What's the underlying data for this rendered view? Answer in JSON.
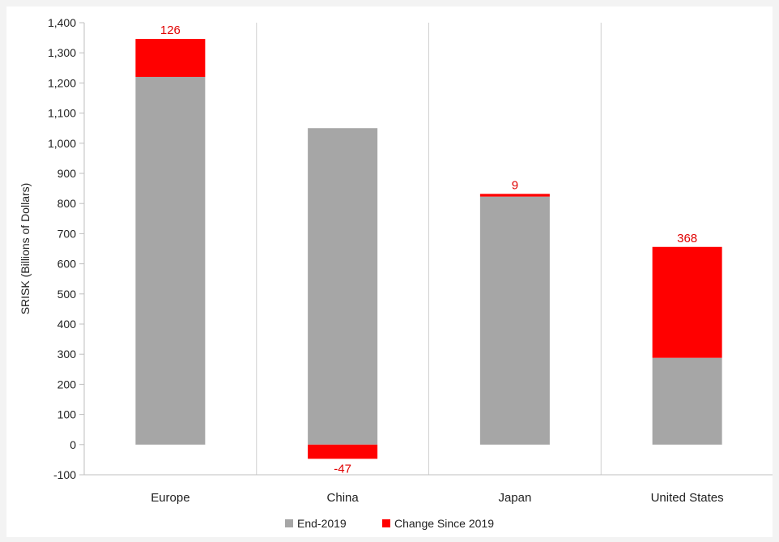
{
  "chart_data": {
    "type": "bar",
    "stacked": true,
    "title": "",
    "xlabel": "",
    "ylabel": "SRISK (Billions of Dollars)",
    "ylim": [
      -100,
      1400
    ],
    "yticks": [
      -100,
      0,
      100,
      200,
      300,
      400,
      500,
      600,
      700,
      800,
      900,
      1000,
      1100,
      1200,
      1300,
      1400
    ],
    "ytick_labels": [
      "-100",
      "0",
      "100",
      "200",
      "300",
      "400",
      "500",
      "600",
      "700",
      "800",
      "900",
      "1,000",
      "1,100",
      "1,200",
      "1,300",
      "1,400"
    ],
    "categories": [
      "Europe",
      "China",
      "Japan",
      "United States"
    ],
    "series": [
      {
        "name": "End-2019",
        "values": [
          1220,
          1050,
          823,
          288
        ],
        "color": "#a6a6a6"
      },
      {
        "name": "Change Since 2019",
        "values": [
          126,
          -47,
          9,
          368
        ],
        "color": "#ff0000"
      }
    ],
    "data_labels": [
      "126",
      "-47",
      "9",
      "368"
    ],
    "grid": "vertical category separators",
    "legend": "bottom",
    "label_color": "#e00000"
  }
}
